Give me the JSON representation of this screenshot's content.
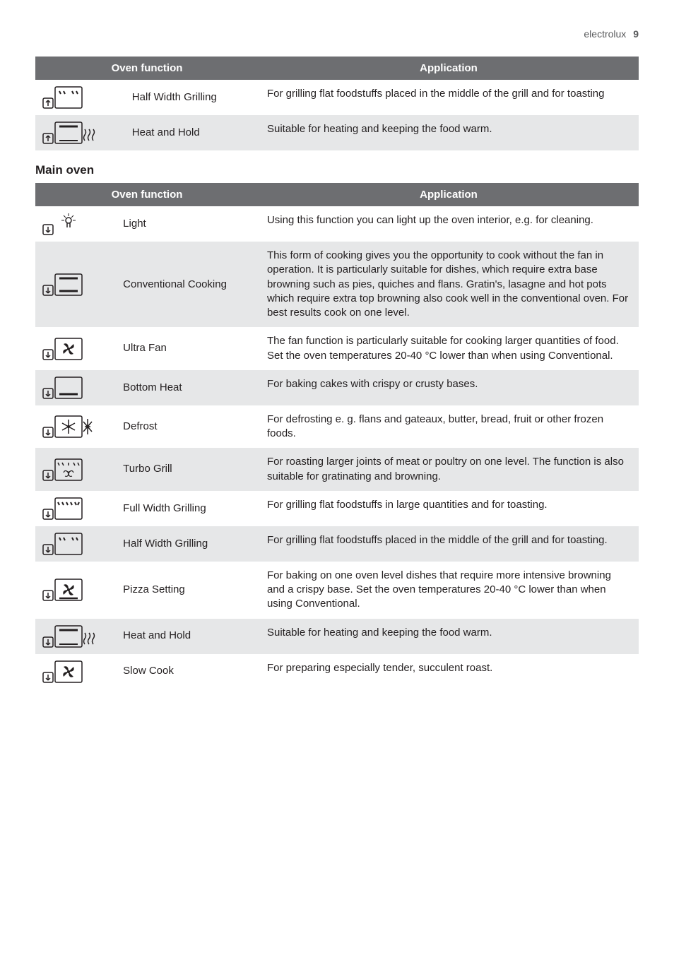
{
  "header": {
    "brand": "electrolux",
    "page_number": "9"
  },
  "table1": {
    "headers": {
      "func": "Oven function",
      "app": "Application"
    },
    "rows": [
      {
        "func": "Half Width Grilling",
        "app": "For grilling flat foodstuffs placed in the middle of the grill and for toasting",
        "icon": "half-grill-up",
        "shade": false
      },
      {
        "func": "Heat and Hold",
        "app": "Suitable for heating and keeping the food warm.",
        "icon": "heat-hold-up",
        "shade": true
      }
    ]
  },
  "section_title": "Main oven",
  "table2": {
    "headers": {
      "func": "Oven function",
      "app": "Application"
    },
    "rows": [
      {
        "func": "Light",
        "app": "Using this function you can light up the oven interior, e.g. for cleaning.",
        "icon": "light",
        "shade": false
      },
      {
        "func": "Conventional Cooking",
        "app": "This form of cooking gives you the opportunity to cook without the fan in operation. It is particularly suitable for dishes, which require extra base browning such as pies, quiches and flans. Gratin's, lasagne and hot pots which require extra top browning also cook well in the conventional oven. For best results cook on one level.",
        "icon": "conventional",
        "shade": true
      },
      {
        "func": "Ultra Fan",
        "app": "The fan function is particularly suitable for cooking larger quantities of food. Set the oven temperatures 20-40 °C lower than when using Conventional.",
        "icon": "ultra-fan",
        "shade": false
      },
      {
        "func": "Bottom Heat",
        "app": "For baking cakes with crispy or crusty bases.",
        "icon": "bottom-heat",
        "shade": true
      },
      {
        "func": "Defrost",
        "app": "For defrosting e. g. flans and gateaux, butter, bread, fruit or other frozen foods.",
        "icon": "defrost",
        "shade": false
      },
      {
        "func": "Turbo Grill",
        "app": "For roasting larger joints of meat or poultry on one level. The function is also suitable for gratinating and browning.",
        "icon": "turbo-grill",
        "shade": true
      },
      {
        "func": "Full Width Grilling",
        "app": "For grilling flat foodstuffs in large quantities and for toasting.",
        "icon": "full-grill",
        "shade": false
      },
      {
        "func": "Half Width Grilling",
        "app": "For grilling flat foodstuffs placed in the middle of the grill and for toasting.",
        "icon": "half-grill",
        "shade": true
      },
      {
        "func": "Pizza Setting",
        "app": "For baking on one oven level dishes that require more intensive browning and a crispy base. Set the oven temperatures 20-40 °C lower than when using Conventional.",
        "icon": "pizza",
        "shade": false
      },
      {
        "func": "Heat and Hold",
        "app": "Suitable for heating and keeping the food warm.",
        "icon": "heat-hold",
        "shade": true
      },
      {
        "func": "Slow Cook",
        "app": "For preparing especially tender, succulent roast.",
        "icon": "slow-cook",
        "shade": false
      }
    ]
  },
  "style": {
    "header_bg": "#6d6e71",
    "header_fg": "#ffffff",
    "shade_bg": "#e6e7e8",
    "text_color": "#231f20",
    "icon_stroke": "#231f20",
    "font_size_body": 15,
    "font_size_header": 15,
    "font_size_section": 17,
    "col_func_width_pct": 37,
    "col_app_width_pct": 63
  }
}
